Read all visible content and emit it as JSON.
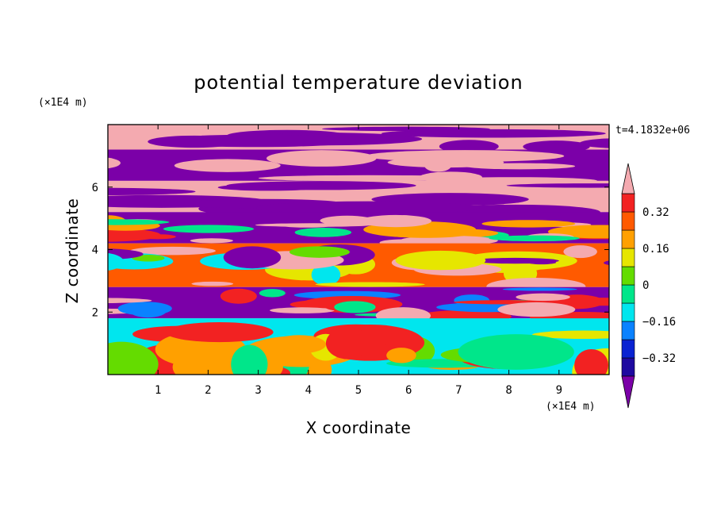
{
  "chart_data": {
    "type": "heatmap",
    "title": "potential temperature deviation",
    "xlabel": "X coordinate",
    "ylabel": "Z coordinate",
    "x_unit": "(×1E4 m)",
    "y_unit": "(×1E4 m)",
    "time_label": "t=4.1832e+06",
    "xlim": [
      0,
      10
    ],
    "ylim": [
      0,
      8
    ],
    "x_ticks": [
      1,
      2,
      3,
      4,
      5,
      6,
      7,
      8,
      9
    ],
    "y_ticks": [
      2,
      4,
      6
    ],
    "colorbar": {
      "levels": [
        -0.4,
        -0.32,
        -0.24,
        -0.16,
        -0.08,
        0,
        0.08,
        0.16,
        0.24,
        0.32,
        0.4
      ],
      "colors": [
        "#7b00a8",
        "#1e0aa0",
        "#0a23d2",
        "#0a82ff",
        "#00e6ee",
        "#00e68a",
        "#64dc00",
        "#e6e600",
        "#ffa000",
        "#ff5a00",
        "#f22222",
        "#f4aab0"
      ],
      "labels": [
        "0.32",
        "0.16",
        "0",
        "−0.16",
        "−0.32"
      ],
      "label_values": [
        0.32,
        0.16,
        0,
        -0.16,
        -0.32
      ]
    },
    "bands": [
      {
        "z_min": 7.2,
        "z_max": 8.0,
        "pattern": "alternating",
        "colors": [
          "#f4aab0",
          "#7b00a8"
        ]
      },
      {
        "z_min": 6.2,
        "z_max": 7.2,
        "pattern": "alternating",
        "colors": [
          "#7b00a8",
          "#f4aab0"
        ]
      },
      {
        "z_min": 5.2,
        "z_max": 6.2,
        "pattern": "alternating",
        "colors": [
          "#f4aab0",
          "#7b00a8"
        ]
      },
      {
        "z_min": 4.2,
        "z_max": 5.2,
        "pattern": "mixed",
        "colors": [
          "#7b00a8",
          "#f22222",
          "#ffa000",
          "#00e68a",
          "#f4aab0"
        ]
      },
      {
        "z_min": 2.8,
        "z_max": 4.2,
        "pattern": "mixed",
        "colors": [
          "#ff5a00",
          "#e6e600",
          "#64dc00",
          "#00e6ee",
          "#7b00a8",
          "#f4aab0"
        ]
      },
      {
        "z_min": 1.8,
        "z_max": 2.8,
        "pattern": "mixed",
        "colors": [
          "#7b00a8",
          "#f4aab0",
          "#f22222",
          "#00e68a",
          "#0a82ff"
        ]
      },
      {
        "z_min": 0.0,
        "z_max": 1.8,
        "pattern": "turbulent",
        "colors": [
          "#00e6ee",
          "#00e68a",
          "#64dc00",
          "#e6e600",
          "#ffa000",
          "#f22222"
        ]
      }
    ]
  }
}
